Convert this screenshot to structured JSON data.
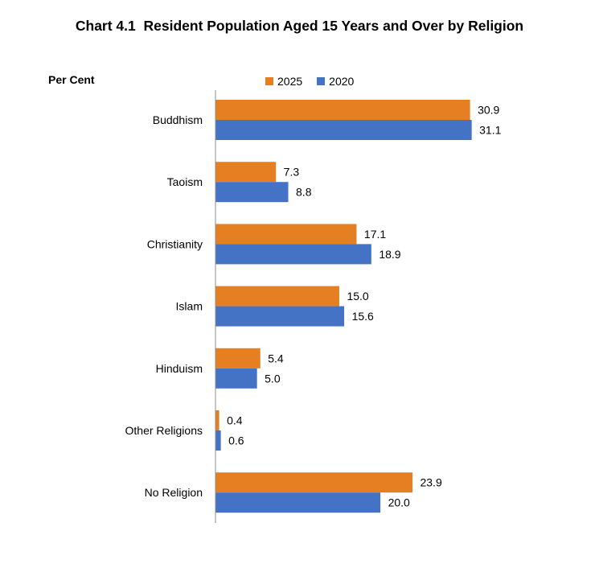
{
  "chart_data": {
    "type": "bar",
    "orientation": "horizontal",
    "title": "Chart 4.1  Resident Population Aged 15 Years and Over by Religion",
    "unit_label": "Per Cent",
    "categories": [
      "Buddhism",
      "Taoism",
      "Christianity",
      "Islam",
      "Hinduism",
      "Other Religions",
      "No Religion"
    ],
    "series": [
      {
        "name": "2025",
        "color": "#E67E22",
        "values": [
          30.9,
          7.3,
          17.1,
          15.0,
          5.4,
          0.4,
          23.9
        ]
      },
      {
        "name": "2020",
        "color": "#4472C4",
        "values": [
          31.1,
          8.8,
          18.9,
          15.6,
          5.0,
          0.6,
          20.0
        ]
      }
    ],
    "xlim": [
      0,
      35
    ],
    "grid": false,
    "legend_position": "top-center"
  }
}
